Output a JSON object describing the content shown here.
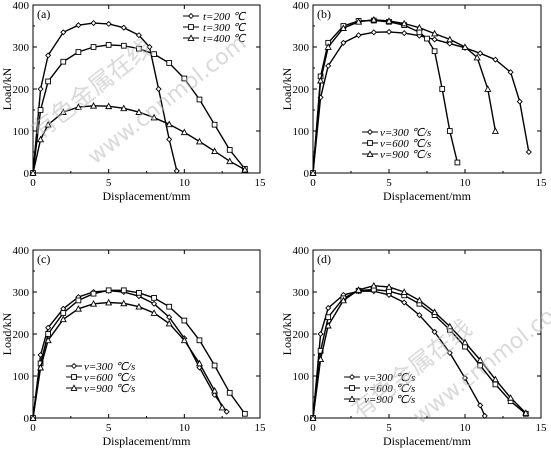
{
  "chart_data": [
    {
      "panel_label": "(a)",
      "type": "line",
      "xlabel": "Displacement/mm",
      "ylabel": "Load/kN",
      "xlim": [
        0,
        15
      ],
      "ylim": [
        0,
        400
      ],
      "xticks": [
        0,
        5,
        10,
        15
      ],
      "yticks": [
        0,
        100,
        200,
        300,
        400
      ],
      "legend_position": "top-right",
      "series": [
        {
          "name": "t=200 ℃",
          "marker": "diamond",
          "x": [
            0,
            0.5,
            1,
            2,
            3,
            4,
            5,
            6,
            7,
            7.7,
            8.3,
            9,
            9.5
          ],
          "y": [
            0,
            200,
            280,
            335,
            352,
            357,
            355,
            346,
            328,
            300,
            200,
            80,
            5
          ]
        },
        {
          "name": "t=300 ℃",
          "marker": "square",
          "x": [
            0,
            0.5,
            1,
            2,
            3,
            4,
            5,
            6,
            7,
            8,
            9,
            10,
            11,
            12,
            13,
            14
          ],
          "y": [
            0,
            150,
            218,
            265,
            288,
            300,
            305,
            303,
            296,
            283,
            262,
            225,
            175,
            115,
            55,
            10
          ]
        },
        {
          "name": "t=400 ℃",
          "marker": "triangle",
          "x": [
            0,
            0.5,
            1,
            2,
            3,
            4,
            5,
            6,
            7,
            8,
            9,
            10,
            11,
            12,
            13,
            14
          ],
          "y": [
            0,
            80,
            115,
            145,
            157,
            160,
            159,
            154,
            145,
            132,
            116,
            97,
            75,
            52,
            28,
            8
          ]
        }
      ]
    },
    {
      "panel_label": "(b)",
      "type": "line",
      "xlabel": "Displacement/mm",
      "ylabel": "Load/kN",
      "xlim": [
        0,
        15
      ],
      "ylim": [
        0,
        400
      ],
      "xticks": [
        0,
        5,
        10,
        15
      ],
      "yticks": [
        0,
        100,
        200,
        300,
        400
      ],
      "legend_position": "bottom-center",
      "series": [
        {
          "name": "v=300 ℃/s",
          "marker": "diamond",
          "x": [
            0,
            0.5,
            1,
            2,
            3,
            4,
            5,
            6,
            7,
            8,
            9,
            10,
            11,
            12,
            13,
            13.6,
            14.2
          ],
          "y": [
            0,
            180,
            255,
            310,
            328,
            335,
            336,
            333,
            327,
            318,
            308,
            298,
            285,
            270,
            240,
            170,
            50
          ]
        },
        {
          "name": "v=600 ℃/s",
          "marker": "square",
          "x": [
            0,
            0.5,
            1,
            2,
            3,
            4,
            5,
            6,
            7,
            7.5,
            8,
            8.5,
            9,
            9.5
          ],
          "y": [
            0,
            230,
            310,
            350,
            362,
            363,
            360,
            352,
            335,
            320,
            290,
            200,
            100,
            25
          ]
        },
        {
          "name": "v=900 ℃/s",
          "marker": "triangle",
          "x": [
            0,
            0.5,
            1,
            2,
            3,
            4,
            5,
            6,
            7,
            8,
            9,
            10,
            10.8,
            11.5,
            12
          ],
          "y": [
            0,
            220,
            300,
            345,
            360,
            365,
            362,
            356,
            346,
            332,
            318,
            300,
            275,
            200,
            100
          ]
        }
      ]
    },
    {
      "panel_label": "(c)",
      "type": "line",
      "xlabel": "Displacement/mm",
      "ylabel": "Load/kN",
      "xlim": [
        0,
        15
      ],
      "ylim": [
        0,
        400
      ],
      "xticks": [
        0,
        5,
        10,
        15
      ],
      "yticks": [
        0,
        100,
        200,
        300,
        400
      ],
      "legend_position": "bottom-left",
      "series": [
        {
          "name": "v=300 ℃/s",
          "marker": "diamond",
          "x": [
            0,
            0.5,
            1,
            2,
            3,
            4,
            5,
            6,
            7,
            8,
            9,
            10,
            11,
            12,
            12.8
          ],
          "y": [
            0,
            150,
            215,
            260,
            288,
            300,
            303,
            300,
            290,
            272,
            240,
            190,
            120,
            55,
            15
          ]
        },
        {
          "name": "v=600 ℃/s",
          "marker": "square",
          "x": [
            0,
            0.5,
            1,
            2,
            3,
            4,
            5,
            6,
            7,
            8,
            9,
            10,
            11,
            12,
            13,
            14
          ],
          "y": [
            0,
            130,
            200,
            250,
            280,
            296,
            304,
            304,
            298,
            286,
            265,
            232,
            185,
            125,
            60,
            10
          ]
        },
        {
          "name": "v=900 ℃/s",
          "marker": "triangle",
          "x": [
            0,
            0.5,
            1,
            2,
            3,
            4,
            5,
            6,
            7,
            8,
            9,
            10,
            11,
            12,
            12.5
          ],
          "y": [
            0,
            120,
            185,
            235,
            260,
            272,
            275,
            273,
            265,
            250,
            225,
            185,
            130,
            65,
            25
          ]
        }
      ]
    },
    {
      "panel_label": "(d)",
      "type": "line",
      "xlabel": "Displacement/mm",
      "ylabel": "Load/kN",
      "xlim": [
        0,
        15
      ],
      "ylim": [
        0,
        400
      ],
      "xticks": [
        0,
        5,
        10,
        15
      ],
      "yticks": [
        0,
        100,
        200,
        300,
        400
      ],
      "legend_position": "bottom-left",
      "series": [
        {
          "name": "v=300 ℃/s",
          "marker": "diamond",
          "x": [
            0,
            0.5,
            1,
            2,
            3,
            4,
            5,
            6,
            7,
            8,
            9,
            10,
            11,
            11.3
          ],
          "y": [
            0,
            200,
            262,
            293,
            302,
            302,
            293,
            275,
            245,
            205,
            155,
            95,
            30,
            5
          ]
        },
        {
          "name": "v=600 ℃/s",
          "marker": "square",
          "x": [
            0,
            0.5,
            1,
            2,
            3,
            4,
            5,
            6,
            7,
            8,
            9,
            10,
            11,
            12,
            13,
            14
          ],
          "y": [
            0,
            160,
            240,
            285,
            303,
            306,
            302,
            292,
            272,
            245,
            210,
            170,
            125,
            80,
            40,
            10
          ]
        },
        {
          "name": "v=900 ℃/s",
          "marker": "triangle",
          "x": [
            0,
            0.5,
            1,
            2,
            3,
            4,
            5,
            6,
            7,
            8,
            9,
            10,
            11,
            12,
            13,
            14
          ],
          "y": [
            0,
            140,
            220,
            280,
            305,
            315,
            312,
            300,
            280,
            252,
            218,
            180,
            138,
            92,
            48,
            12
          ]
        }
      ]
    }
  ],
  "watermark": {
    "chinese_text": "有色金属在线",
    "latin_text": "www.cnnmol.com",
    "text_color": "#bbbbbb"
  }
}
